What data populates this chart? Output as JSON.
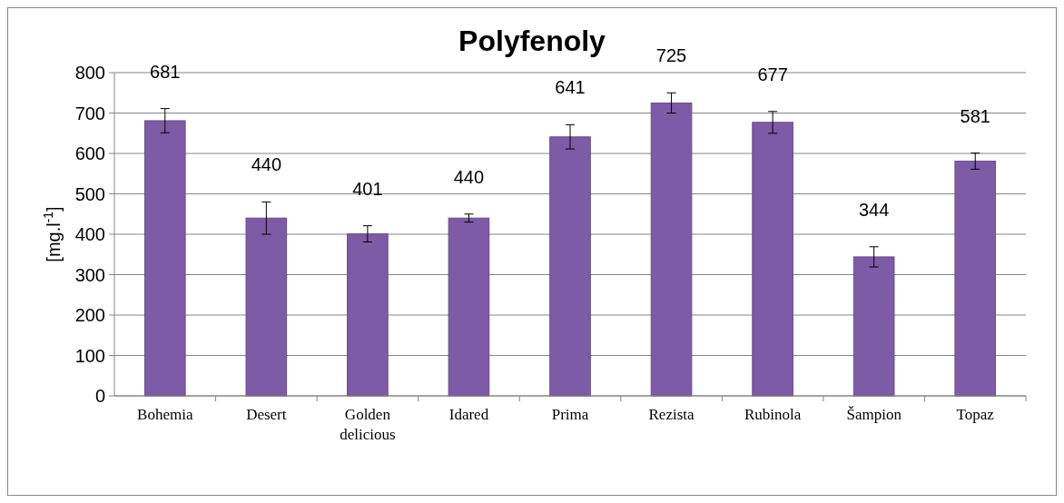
{
  "chart_data": {
    "type": "bar",
    "title": "Polyfenoly",
    "ylabel": "[mg.l$^{-1}$]",
    "categories": [
      "Bohemia",
      "Desert",
      "Golden delicious",
      "Idared",
      "Prima",
      "Rezista",
      "Rubinola",
      "Šampion",
      "Topaz"
    ],
    "values": [
      681,
      440,
      401,
      440,
      641,
      725,
      677,
      344,
      581
    ],
    "errors": [
      30,
      40,
      20,
      10,
      30,
      25,
      27,
      25,
      20
    ],
    "color": "#7d5ba6",
    "ylim": [
      0,
      800
    ],
    "yticks": [
      0,
      100,
      200,
      300,
      400,
      500,
      600,
      700,
      800
    ],
    "grid": "y",
    "data_labels": true
  }
}
